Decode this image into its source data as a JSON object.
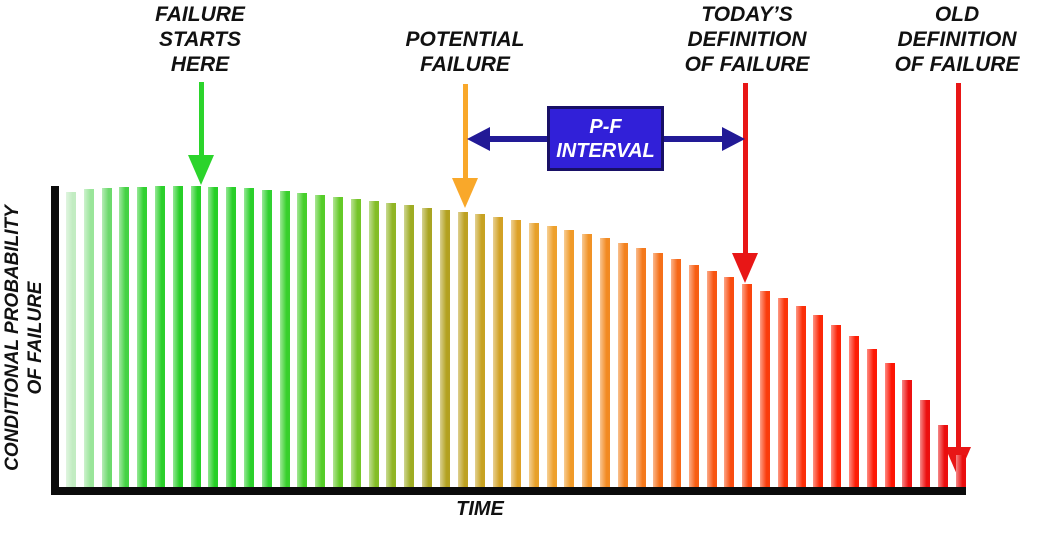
{
  "annotations": {
    "failure_starts": {
      "lines": [
        "FAILURE",
        "STARTS",
        "HERE"
      ],
      "arrow_color": "#2bd42b"
    },
    "potential_failure": {
      "lines": [
        "POTENTIAL",
        "FAILURE"
      ],
      "arrow_color": "#f9a82a"
    },
    "pf_interval": {
      "lines": [
        "P-F",
        "INTERVAL"
      ],
      "box_fill": "#3120d8",
      "box_border": "#181066",
      "arrow_color": "#221a96",
      "text_color": "#ffffff"
    },
    "todays_definition": {
      "lines": [
        "TODAY’S",
        "DEFINITION",
        "OF FAILURE"
      ],
      "arrow_color": "#e81616"
    },
    "old_definition": {
      "lines": [
        "OLD",
        "DEFINITION",
        "OF FAILURE"
      ],
      "arrow_color": "#e81616"
    }
  },
  "chart_data": {
    "type": "bar",
    "xlabel": "TIME",
    "ylabel": "CONDITIONAL PROBABILITY OF FAILURE",
    "ylabel_lines": [
      "CONDITIONAL PROBABILITY",
      "OF FAILURE"
    ],
    "axis_color": "#0b0b0b",
    "ylim": [
      0,
      100
    ],
    "legend": "none",
    "grid": false,
    "values": [
      98.0,
      99.0,
      99.3,
      99.7,
      99.8,
      100,
      100,
      100,
      99.8,
      99.7,
      99.3,
      98.7,
      98.3,
      97.7,
      97.0,
      96.4,
      95.7,
      95.0,
      94.4,
      93.7,
      92.7,
      92.1,
      91.4,
      90.7,
      89.7,
      88.7,
      87.7,
      86.8,
      85.4,
      84.1,
      82.8,
      81.1,
      79.5,
      77.8,
      75.8,
      73.8,
      71.9,
      69.9,
      67.5,
      65.2,
      62.9,
      60.3,
      57.3,
      54.0,
      50.3,
      46.0,
      41.4,
      35.8,
      29.1,
      20.9,
      10.9
    ],
    "colors": [
      "#c2ecc2",
      "#9ae59a",
      "#6cd96c",
      "#44d244",
      "#30d130",
      "#2bd02b",
      "#28cf28",
      "#26cf26",
      "#26cf26",
      "#28cf28",
      "#2bd02b",
      "#30d130",
      "#38d02c",
      "#46cf2b",
      "#55cd29",
      "#64ca28",
      "#74c427",
      "#83bd26",
      "#91b524",
      "#9eac23",
      "#a9a421",
      "#b3a120",
      "#bda121",
      "#c7a222",
      "#d2a124",
      "#dda026",
      "#e7a029",
      "#eea02b",
      "#f09a28",
      "#f19225",
      "#f28a22",
      "#f3821f",
      "#f4791c",
      "#f57019",
      "#f66716",
      "#f75e13",
      "#f85511",
      "#f94c0f",
      "#fa440d",
      "#fa3c0b",
      "#fb350a",
      "#fb2e08",
      "#fc2807",
      "#fc2206",
      "#fd1d05",
      "#fd1804",
      "#fd1403",
      "#ed1010",
      "#ec0f0f",
      "#eb0e0e",
      "#ea0e0e"
    ]
  }
}
